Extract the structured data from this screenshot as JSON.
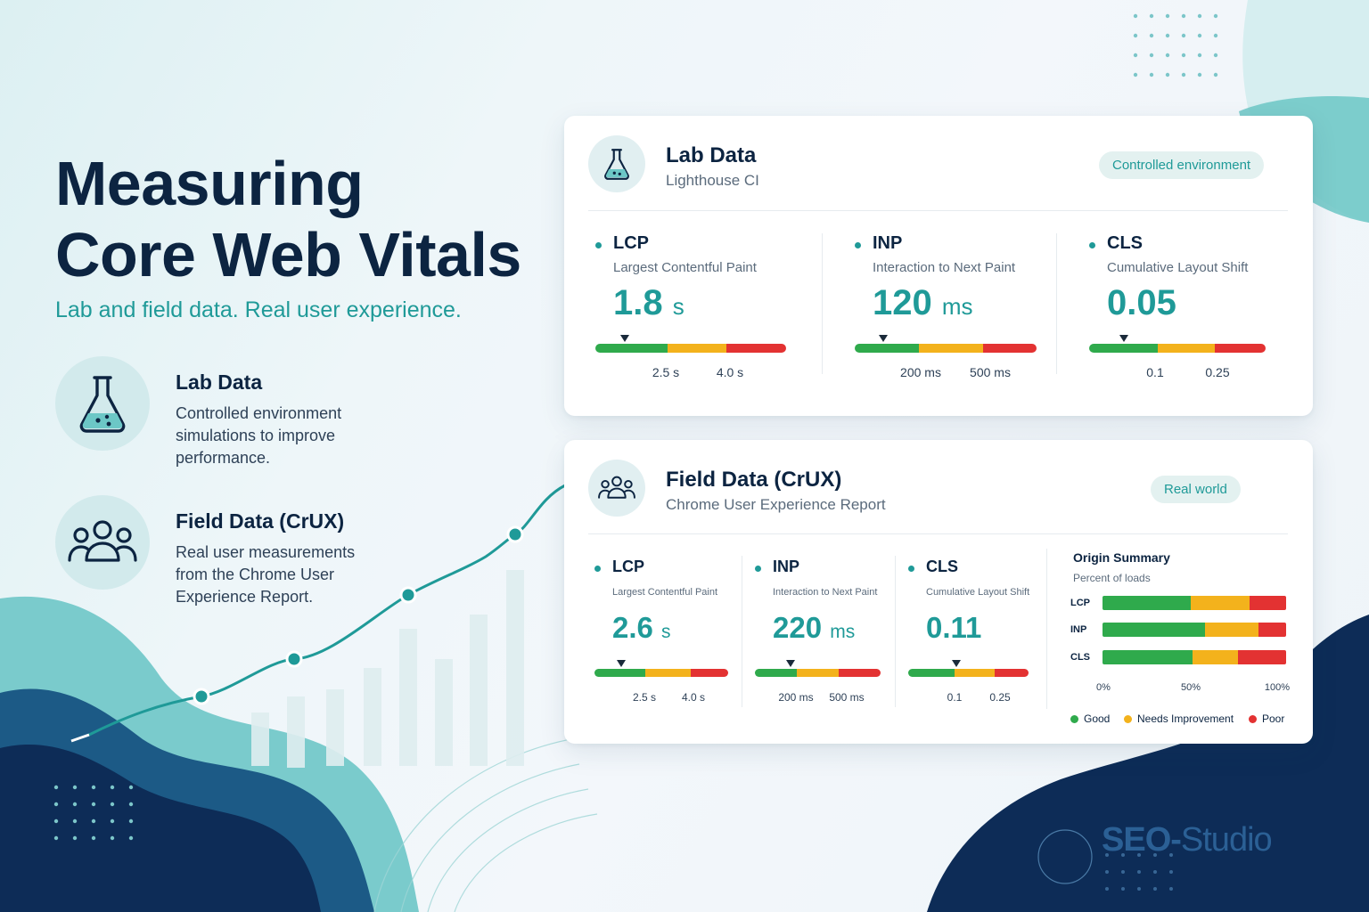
{
  "hero": {
    "title_line1": "Measuring",
    "title_line2": "Core Web Vitals",
    "tagline": "Lab and field data. Real user experience."
  },
  "features": [
    {
      "title": "Lab Data",
      "description": "Controlled environment simulations to improve performance.",
      "icon": "flask-icon"
    },
    {
      "title": "Field Data (CrUX)",
      "description": "Real user measurements from the Chrome User Experience Report.",
      "icon": "users-icon"
    }
  ],
  "lab_card": {
    "title": "Lab Data",
    "subtitle": "Lighthouse CI",
    "badge": "Controlled environment",
    "icon": "flask-icon",
    "metrics": [
      {
        "name": "LCP",
        "description": "Largest Contentful Paint",
        "value": "1.8",
        "unit": "s",
        "thresholds": [
          "2.5 s",
          "4.0 s"
        ]
      },
      {
        "name": "INP",
        "description": "Interaction to Next Paint",
        "value": "120",
        "unit": "ms",
        "thresholds": [
          "200 ms",
          "500 ms"
        ]
      },
      {
        "name": "CLS",
        "description": "Cumulative Layout Shift",
        "value": "0.05",
        "unit": "",
        "thresholds": [
          "0.1",
          "0.25"
        ]
      }
    ]
  },
  "field_card": {
    "title": "Field Data (CrUX)",
    "subtitle": "Chrome User Experience Report",
    "badge": "Real world",
    "icon": "users-icon",
    "metrics": [
      {
        "name": "LCP",
        "description": "Largest Contentful Paint",
        "value": "2.6",
        "unit": "s",
        "thresholds": [
          "2.5 s",
          "4.0 s"
        ]
      },
      {
        "name": "INP",
        "description": "Interaction to Next Paint",
        "value": "220",
        "unit": "ms",
        "thresholds": [
          "200 ms",
          "500 ms"
        ]
      },
      {
        "name": "CLS",
        "description": "Cumulative Layout Shift",
        "value": "0.11",
        "unit": "",
        "thresholds": [
          "0.1",
          "0.25"
        ]
      }
    ],
    "origin_summary": {
      "title": "Origin Summary",
      "subtitle": "Percent of loads",
      "axis": [
        "0%",
        "50%",
        "100%"
      ],
      "legend": [
        "Good",
        "Needs Improvement",
        "Poor"
      ],
      "rows": [
        {
          "label": "LCP",
          "good": 48,
          "needs_improvement": 32,
          "poor": 20
        },
        {
          "label": "INP",
          "good": 56,
          "needs_improvement": 29,
          "poor": 15
        },
        {
          "label": "CLS",
          "good": 49,
          "needs_improvement": 25,
          "poor": 26
        }
      ]
    }
  },
  "brand": {
    "part1": "SEO-",
    "part2": "Studio"
  },
  "colors": {
    "accent": "#1f9a98",
    "navy": "#0c2441",
    "good": "#2faa4c",
    "needs_improvement": "#f3b21c",
    "poor": "#e33232"
  }
}
